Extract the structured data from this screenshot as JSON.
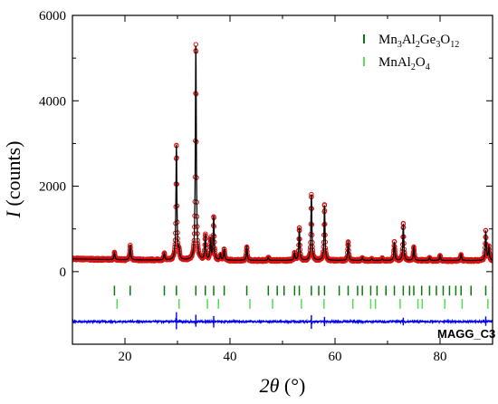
{
  "chart_data": {
    "type": "scatter",
    "xlabel": {
      "italic": "2θ",
      "unit": " (°)"
    },
    "ylabel": {
      "italic": "I",
      "unit": " (counts)"
    },
    "xlim": [
      10,
      90
    ],
    "ylim": [
      -1700,
      6000
    ],
    "x_ticks": [
      20,
      40,
      60,
      80
    ],
    "x_minor_ticks": [
      10,
      30,
      50,
      70,
      90
    ],
    "y_ticks": [
      0,
      2000,
      4000,
      6000
    ],
    "y_minor_ticks": [
      1000,
      3000,
      5000
    ],
    "sample_label": "MAGG_C3",
    "colors": {
      "observed": "#dd1111",
      "calculated": "#000000",
      "difference": "#0000ee",
      "phase1": "#0a7a0a",
      "phase2": "#55dd55"
    },
    "background": 260,
    "peaks": [
      {
        "x": 18.0,
        "y": 420
      },
      {
        "x": 21.0,
        "y": 580
      },
      {
        "x": 27.5,
        "y": 420
      },
      {
        "x": 29.8,
        "y": 2950
      },
      {
        "x": 30.3,
        "y": 450
      },
      {
        "x": 33.5,
        "y": 5320
      },
      {
        "x": 35.3,
        "y": 850
      },
      {
        "x": 36.3,
        "y": 750
      },
      {
        "x": 36.9,
        "y": 1280
      },
      {
        "x": 38.2,
        "y": 400
      },
      {
        "x": 38.9,
        "y": 520
      },
      {
        "x": 43.2,
        "y": 580
      },
      {
        "x": 47.3,
        "y": 330
      },
      {
        "x": 52.3,
        "y": 430
      },
      {
        "x": 53.2,
        "y": 1030
      },
      {
        "x": 55.5,
        "y": 1810
      },
      {
        "x": 58.0,
        "y": 1550
      },
      {
        "x": 62.5,
        "y": 700
      },
      {
        "x": 65.2,
        "y": 330
      },
      {
        "x": 67.0,
        "y": 300
      },
      {
        "x": 69.0,
        "y": 300
      },
      {
        "x": 71.3,
        "y": 700
      },
      {
        "x": 73.0,
        "y": 1120
      },
      {
        "x": 75.0,
        "y": 580
      },
      {
        "x": 78.0,
        "y": 330
      },
      {
        "x": 80.0,
        "y": 380
      },
      {
        "x": 84.0,
        "y": 400
      },
      {
        "x": 88.7,
        "y": 960
      },
      {
        "x": 89.3,
        "y": 600
      }
    ],
    "phase1_positions": [
      18.0,
      21.0,
      27.5,
      29.8,
      33.5,
      35.3,
      36.9,
      38.9,
      43.2,
      47.3,
      49.0,
      50.3,
      52.3,
      53.2,
      55.5,
      56.9,
      58.0,
      60.8,
      62.5,
      64.3,
      65.2,
      66.8,
      68.0,
      69.7,
      71.3,
      73.0,
      74.2,
      75.0,
      76.5,
      78.0,
      79.3,
      80.6,
      81.8,
      83.0,
      84.0,
      85.9,
      88.7
    ],
    "phase2_positions": [
      18.5,
      30.3,
      35.7,
      37.8,
      43.8,
      48.1,
      53.6,
      57.9,
      63.4,
      66.8,
      67.7,
      72.4,
      75.8,
      76.6,
      80.9,
      84.2,
      89.1
    ],
    "legend": [
      {
        "label": "Mn",
        "sub1": "3",
        "mid1": "Al",
        "sub2": "2",
        "mid2": "Ge",
        "sub3": "3",
        "mid3": "O",
        "sub4": "12"
      },
      {
        "label": "MnAl",
        "sub1": "2",
        "mid1": "O",
        "sub2": "4",
        "mid2": "",
        "sub3": "",
        "mid3": "",
        "sub4": ""
      }
    ]
  }
}
